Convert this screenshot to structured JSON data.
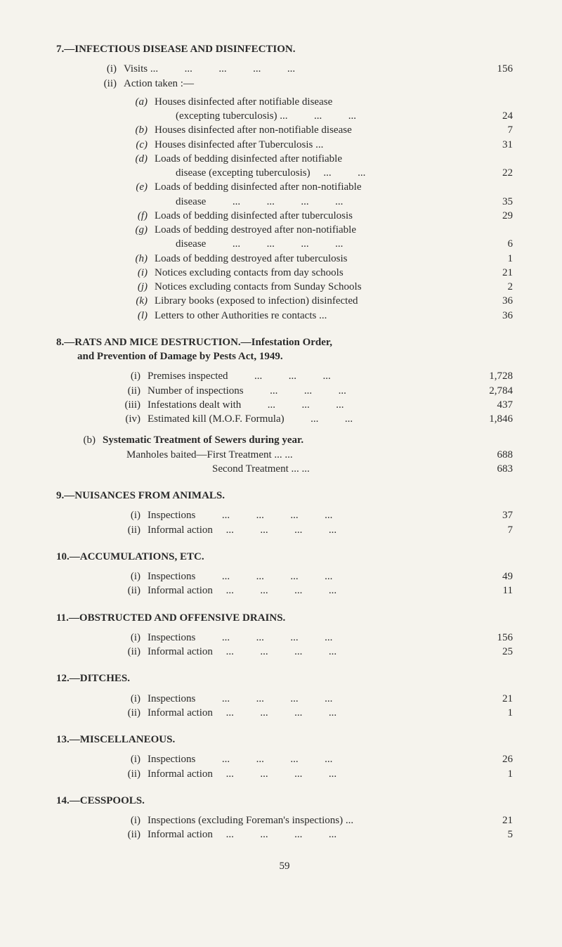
{
  "sec7": {
    "title": "7.—INFECTIOUS DISEASE AND DISINFECTION.",
    "i": {
      "label": "(i)",
      "text": "Visits",
      "dots": "...          ...          ...          ...          ...",
      "val": "156"
    },
    "ii": {
      "label": "(ii)",
      "text": "Action taken :—"
    },
    "items": [
      {
        "label": "(a)",
        "text": "Houses disinfected after notifiable disease (excepting tuberculosis) ...          ...          ...",
        "val": "24",
        "wrap": true,
        "cont": "(excepting tuberculosis) ...          ...          ...",
        "first": "Houses disinfected after notifiable disease"
      },
      {
        "label": "(b)",
        "text": "Houses disinfected after non-notifiable disease",
        "val": "7"
      },
      {
        "label": "(c)",
        "text": "Houses disinfected after Tuberculosis          ...",
        "val": "31"
      },
      {
        "label": "(d)",
        "first": "Loads of bedding disinfected after notifiable",
        "cont": "disease (excepting tuberculosis)     ...          ...",
        "val": "22",
        "wrap": true
      },
      {
        "label": "(e)",
        "first": "Loads of bedding disinfected after non-notifiable",
        "cont": "disease          ...          ...          ...          ...",
        "val": "35",
        "wrap": true
      },
      {
        "label": "(f)",
        "text": "Loads of bedding disinfected after tuberculosis",
        "val": "29"
      },
      {
        "label": "(g)",
        "first": "Loads of bedding destroyed after non-notifiable",
        "cont": "disease          ...          ...          ...          ...",
        "val": "6",
        "wrap": true
      },
      {
        "label": "(h)",
        "text": "Loads of bedding destroyed after tuberculosis",
        "val": "1"
      },
      {
        "label": "(i)",
        "text": "Notices excluding contacts from day schools",
        "val": "21"
      },
      {
        "label": "(j)",
        "text": "Notices excluding contacts from Sunday Schools",
        "val": "2"
      },
      {
        "label": "(k)",
        "text": "Library books (exposed to infection) disinfected",
        "val": "36"
      },
      {
        "label": "(l)",
        "text": "Letters to other Authorities re contacts          ...",
        "val": "36"
      }
    ]
  },
  "sec8": {
    "title1": "8.—RATS AND MICE DESTRUCTION.—Infestation Order,",
    "title2": "and Prevention of Damage by Pests Act, 1949.",
    "rows": [
      {
        "label": "(i)",
        "text": "Premises inspected          ...          ...          ...",
        "val": "1,728"
      },
      {
        "label": "(ii)",
        "text": "Number of inspections          ...          ...          ...",
        "val": "2,784"
      },
      {
        "label": "(iii)",
        "text": "Infestations dealt with          ...          ...          ...",
        "val": "437"
      },
      {
        "label": "(iv)",
        "text": "Estimated kill (M.O.F. Formula)          ...          ...",
        "val": "1,846"
      }
    ],
    "b": {
      "label": "(b)",
      "title": "Systematic Treatment of Sewers during year.",
      "r1": {
        "text": "Manholes baited—First Treatment          ...          ...",
        "val": "688"
      },
      "r2": {
        "text": "Second Treatment          ...          ...",
        "val": "683"
      }
    }
  },
  "sec9": {
    "title": "9.—NUISANCES FROM ANIMALS.",
    "r1": {
      "label": "(i)",
      "text": "Inspections          ...          ...          ...          ...",
      "val": "37"
    },
    "r2": {
      "label": "(ii)",
      "text": "Informal action     ...          ...          ...          ...",
      "val": "7"
    }
  },
  "sec10": {
    "title": "10.—ACCUMULATIONS, ETC.",
    "r1": {
      "label": "(i)",
      "text": "Inspections          ...          ...          ...          ...",
      "val": "49"
    },
    "r2": {
      "label": "(ii)",
      "text": "Informal action     ...          ...          ...          ...",
      "val": "11"
    }
  },
  "sec11": {
    "title": "11.—OBSTRUCTED AND OFFENSIVE DRAINS.",
    "r1": {
      "label": "(i)",
      "text": "Inspections          ...          ...          ...          ...",
      "val": "156"
    },
    "r2": {
      "label": "(ii)",
      "text": "Informal action     ...          ...          ...          ...",
      "val": "25"
    }
  },
  "sec12": {
    "title": "12.—DITCHES.",
    "r1": {
      "label": "(i)",
      "text": "Inspections          ...          ...          ...          ...",
      "val": "21"
    },
    "r2": {
      "label": "(ii)",
      "text": "Informal action     ...          ...          ...          ...",
      "val": "1"
    }
  },
  "sec13": {
    "title": "13.—MISCELLANEOUS.",
    "r1": {
      "label": "(i)",
      "text": "Inspections          ...          ...          ...          ...",
      "val": "26"
    },
    "r2": {
      "label": "(ii)",
      "text": "Informal action     ...          ...          ...          ...",
      "val": "1"
    }
  },
  "sec14": {
    "title": "14.—CESSPOOLS.",
    "r1": {
      "label": "(i)",
      "text": "Inspections (excluding Foreman's inspections) ...",
      "val": "21"
    },
    "r2": {
      "label": "(ii)",
      "text": "Informal action     ...          ...          ...          ...",
      "val": "5"
    }
  },
  "pageNum": "59"
}
